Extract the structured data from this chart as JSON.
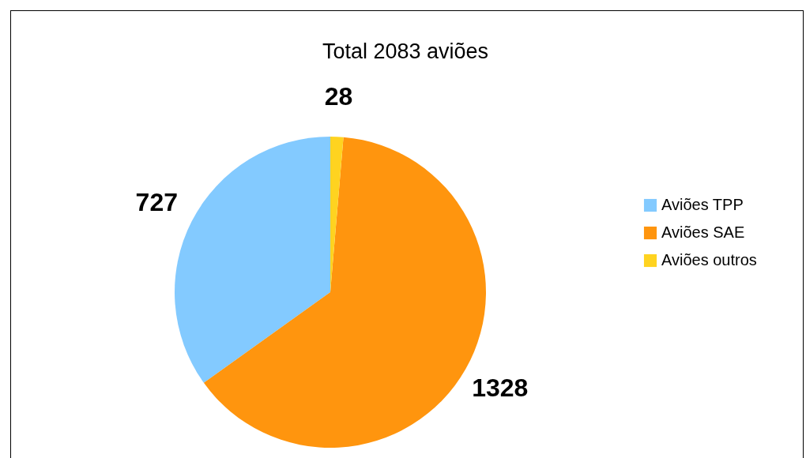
{
  "chart_data": {
    "type": "pie",
    "title": "Total 2083 aviões",
    "categories": [
      "Aviões TPP",
      "Aviões SAE",
      "Aviões outros"
    ],
    "values": [
      727,
      1328,
      28
    ],
    "colors": [
      "#83caff",
      "#ff950e",
      "#ffd320"
    ],
    "data_labels": true,
    "legend": "right"
  }
}
